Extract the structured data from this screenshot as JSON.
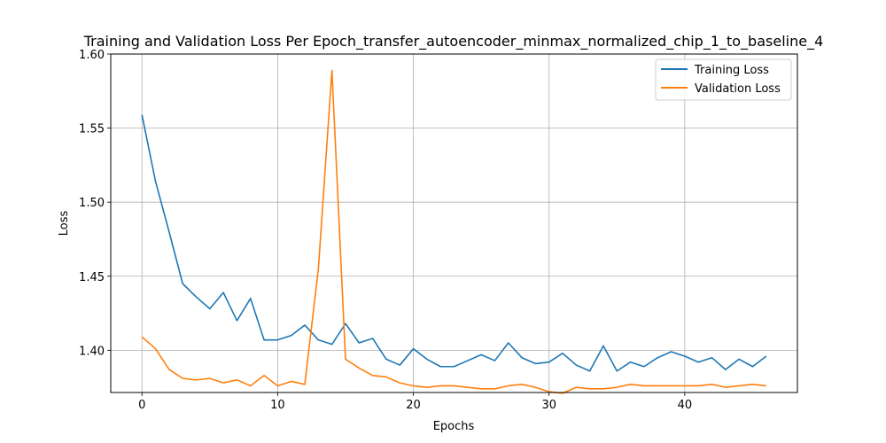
{
  "chart_data": {
    "type": "line",
    "title": "Training and Validation Loss Per Epoch_transfer_autoencoder_minmax_normalized_chip_1_to_baseline_4",
    "xlabel": "Epochs",
    "ylabel": "Loss",
    "xlim": [
      -2.3,
      48.3
    ],
    "ylim": [
      1.3715,
      1.6
    ],
    "xticks": [
      0,
      10,
      20,
      30,
      40
    ],
    "yticks": [
      1.4,
      1.45,
      1.5,
      1.55,
      1.6
    ],
    "ytick_labels": [
      "1.40",
      "1.45",
      "1.50",
      "1.55",
      "1.60"
    ],
    "grid": true,
    "legend_position": "top-right",
    "x": [
      0,
      1,
      2,
      3,
      4,
      5,
      6,
      7,
      8,
      9,
      10,
      11,
      12,
      13,
      14,
      15,
      16,
      17,
      18,
      19,
      20,
      21,
      22,
      23,
      24,
      25,
      26,
      27,
      28,
      29,
      30,
      31,
      32,
      33,
      34,
      35,
      36,
      37,
      38,
      39,
      40,
      41,
      42,
      43,
      44,
      45,
      46
    ],
    "series": [
      {
        "name": "Training Loss",
        "color": "#1f77b4",
        "values": [
          1.559,
          1.514,
          1.48,
          1.445,
          1.436,
          1.428,
          1.439,
          1.42,
          1.435,
          1.407,
          1.407,
          1.41,
          1.417,
          1.407,
          1.404,
          1.418,
          1.405,
          1.408,
          1.394,
          1.39,
          1.401,
          1.394,
          1.389,
          1.389,
          1.393,
          1.397,
          1.393,
          1.405,
          1.395,
          1.391,
          1.392,
          1.398,
          1.39,
          1.386,
          1.403,
          1.386,
          1.392,
          1.389,
          1.395,
          1.399,
          1.396,
          1.392,
          1.395,
          1.387,
          1.394,
          1.389,
          1.396
        ]
      },
      {
        "name": "Validation Loss",
        "color": "#ff7f0e",
        "values": [
          1.409,
          1.401,
          1.387,
          1.381,
          1.38,
          1.381,
          1.378,
          1.38,
          1.376,
          1.383,
          1.376,
          1.379,
          1.377,
          1.455,
          1.589,
          1.394,
          1.388,
          1.383,
          1.382,
          1.378,
          1.376,
          1.375,
          1.376,
          1.376,
          1.375,
          1.374,
          1.374,
          1.376,
          1.377,
          1.375,
          1.372,
          1.371,
          1.375,
          1.374,
          1.374,
          1.375,
          1.377,
          1.376,
          1.376,
          1.376,
          1.376,
          1.376,
          1.377,
          1.375,
          1.376,
          1.377,
          1.376
        ]
      }
    ]
  }
}
